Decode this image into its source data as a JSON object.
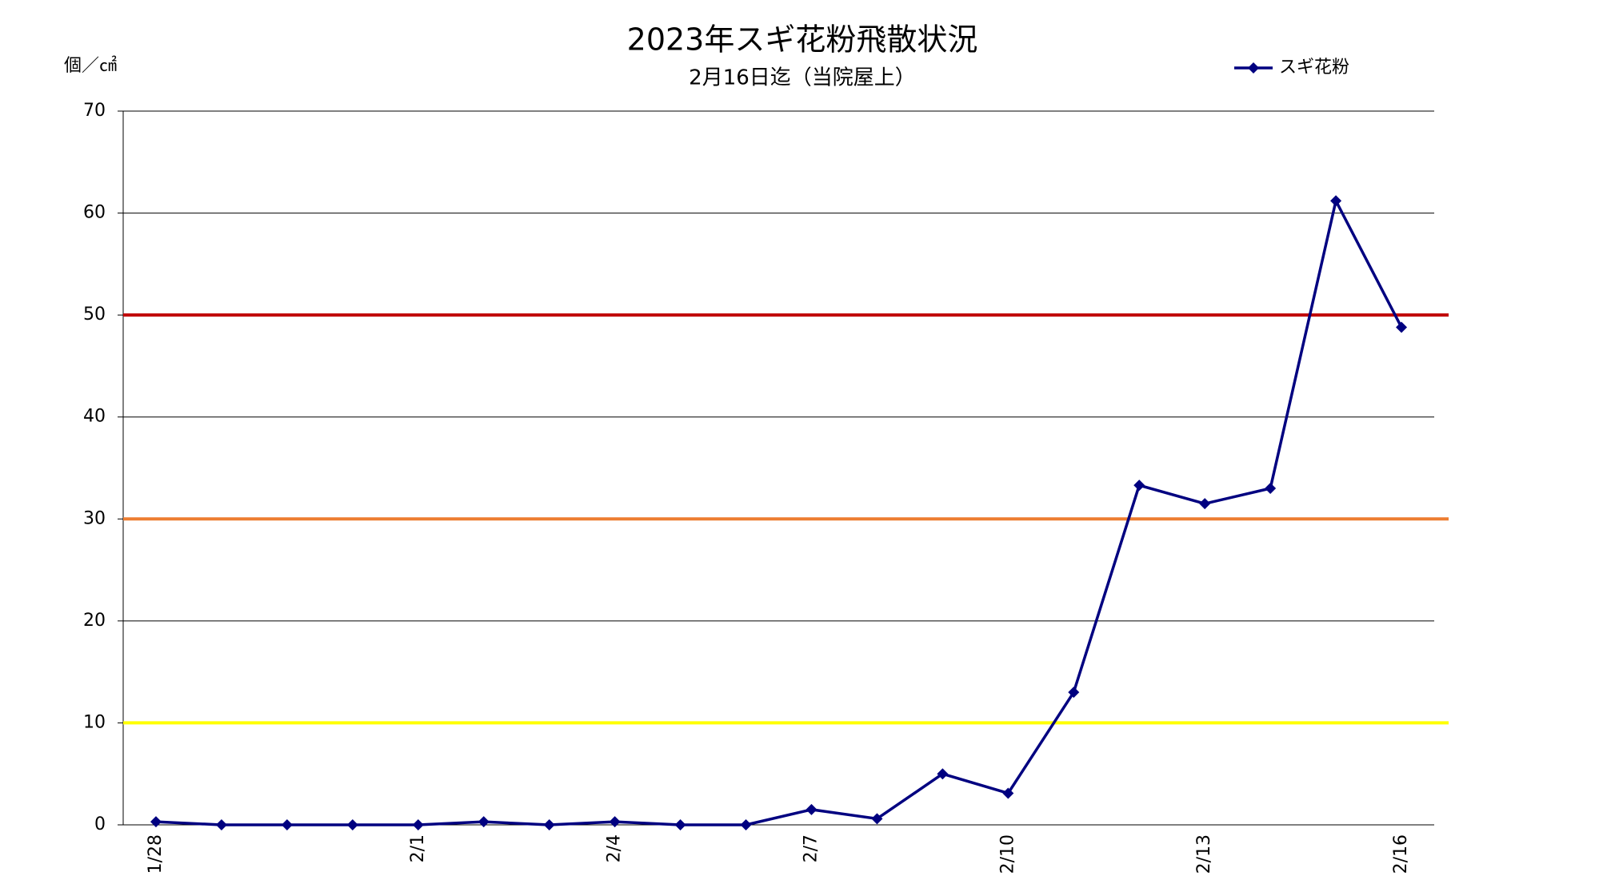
{
  "chart_data": {
    "type": "line",
    "title": "2023年スギ花粉飛散状況",
    "subtitle": "2月16日迄（当院屋上）",
    "y_label": "個／㎠",
    "categories": [
      "1/28",
      null,
      null,
      null,
      "2/1",
      null,
      null,
      "2/4",
      null,
      null,
      "2/7",
      null,
      null,
      "2/10",
      null,
      null,
      "2/13",
      null,
      null,
      "2/16"
    ],
    "series": [
      {
        "name": "スギ花粉",
        "color": "#000080",
        "values": [
          0.3,
          0,
          0,
          0,
          0,
          0.3,
          0,
          0.3,
          0,
          0,
          1.5,
          0.6,
          5,
          3.1,
          13,
          33.3,
          31.5,
          33,
          61.2,
          48.8
        ]
      }
    ],
    "reference_lines": [
      {
        "value": 10,
        "color": "#ffff00"
      },
      {
        "value": 30,
        "color": "#ed7d31"
      },
      {
        "value": 50,
        "color": "#c00000"
      }
    ],
    "ylim": [
      0,
      70
    ],
    "yticks": [
      0,
      10,
      20,
      30,
      40,
      50,
      60,
      70
    ],
    "grid": true,
    "legend": "top-right"
  }
}
